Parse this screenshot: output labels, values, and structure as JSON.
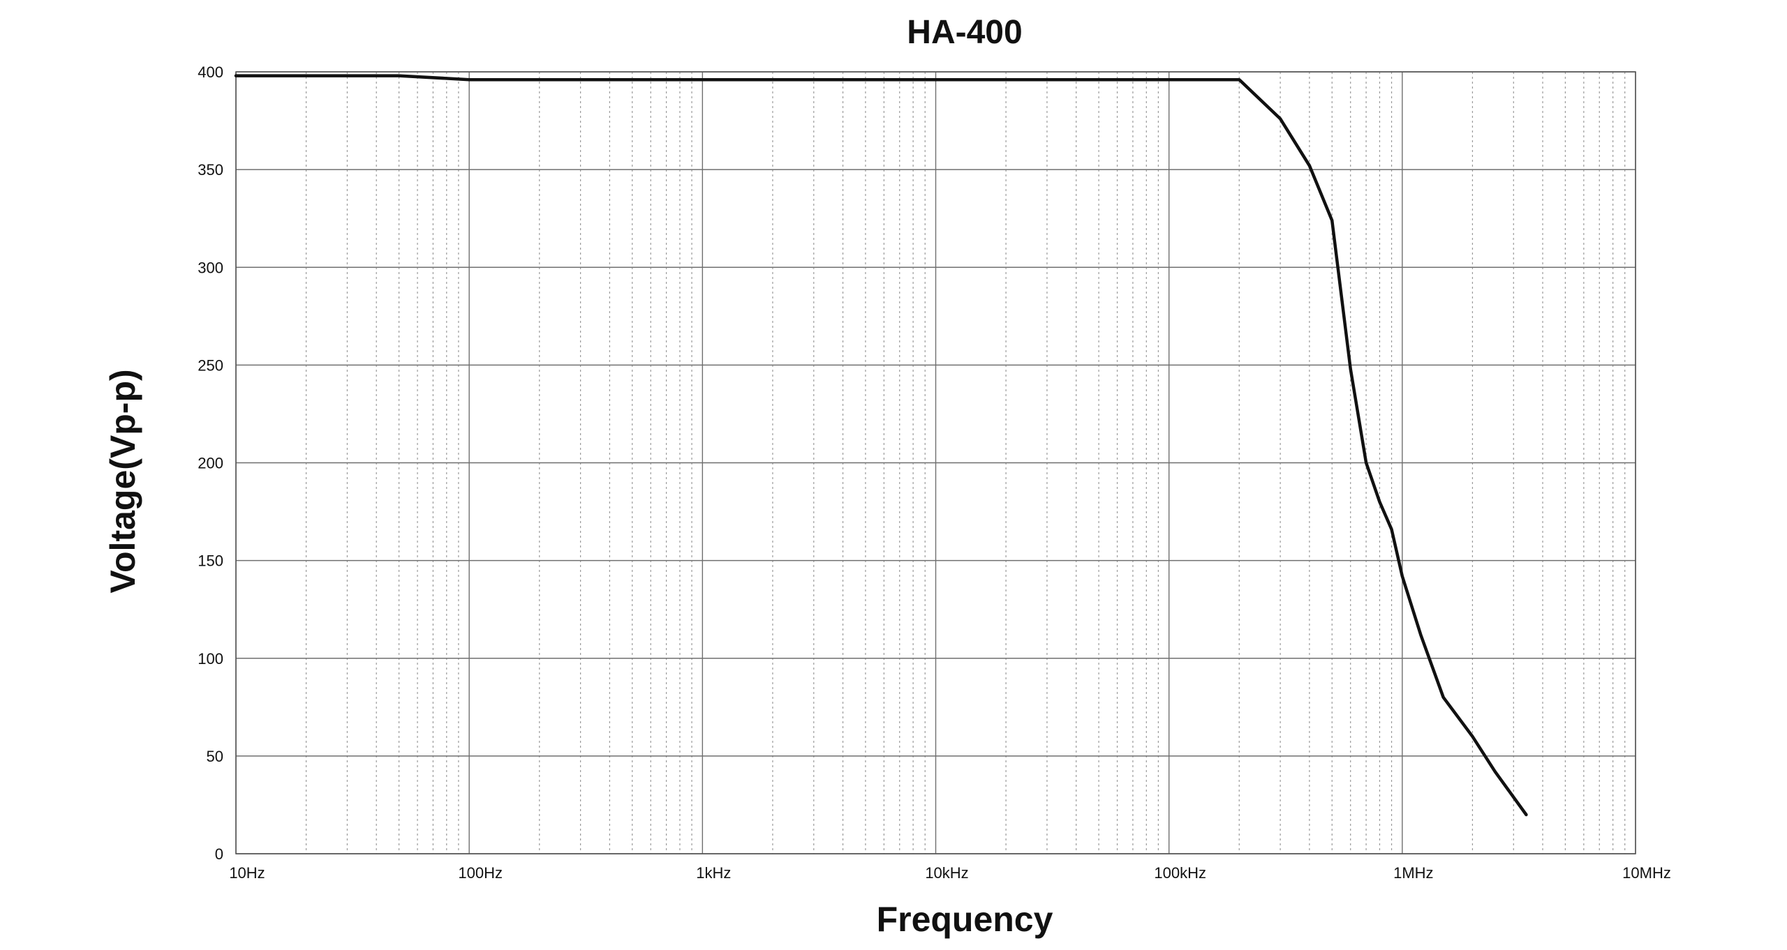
{
  "chart_data": {
    "type": "line",
    "title": "HA-400",
    "xlabel": "Frequency",
    "ylabel": "Voltage(Vp-p)",
    "x_scale": "log",
    "xlim": [
      10,
      10000000
    ],
    "ylim": [
      0,
      400
    ],
    "grid": true,
    "x_ticks": [
      {
        "value": 10,
        "label": "10Hz"
      },
      {
        "value": 100,
        "label": "100Hz"
      },
      {
        "value": 1000,
        "label": "1kHz"
      },
      {
        "value": 10000,
        "label": "10kHz"
      },
      {
        "value": 100000,
        "label": "100kHz"
      },
      {
        "value": 1000000,
        "label": "1MHz"
      },
      {
        "value": 10000000,
        "label": "10MHz"
      }
    ],
    "y_ticks": [
      {
        "value": 0,
        "label": "0"
      },
      {
        "value": 50,
        "label": "50"
      },
      {
        "value": 100,
        "label": "100"
      },
      {
        "value": 150,
        "label": "150"
      },
      {
        "value": 200,
        "label": "200"
      },
      {
        "value": 250,
        "label": "250"
      },
      {
        "value": 300,
        "label": "300"
      },
      {
        "value": 350,
        "label": "350"
      },
      {
        "value": 400,
        "label": "400"
      }
    ],
    "series": [
      {
        "color": "#111111",
        "x": [
          10,
          50,
          100,
          200000,
          300000,
          400000,
          500000,
          600000,
          700000,
          800000,
          900000,
          1000000,
          1200000,
          1500000,
          2000000,
          2500000,
          3400000
        ],
        "y": [
          398,
          398,
          396,
          396,
          376,
          352,
          324,
          248,
          200,
          180,
          166,
          142,
          112,
          80,
          60,
          42,
          20
        ]
      }
    ]
  }
}
